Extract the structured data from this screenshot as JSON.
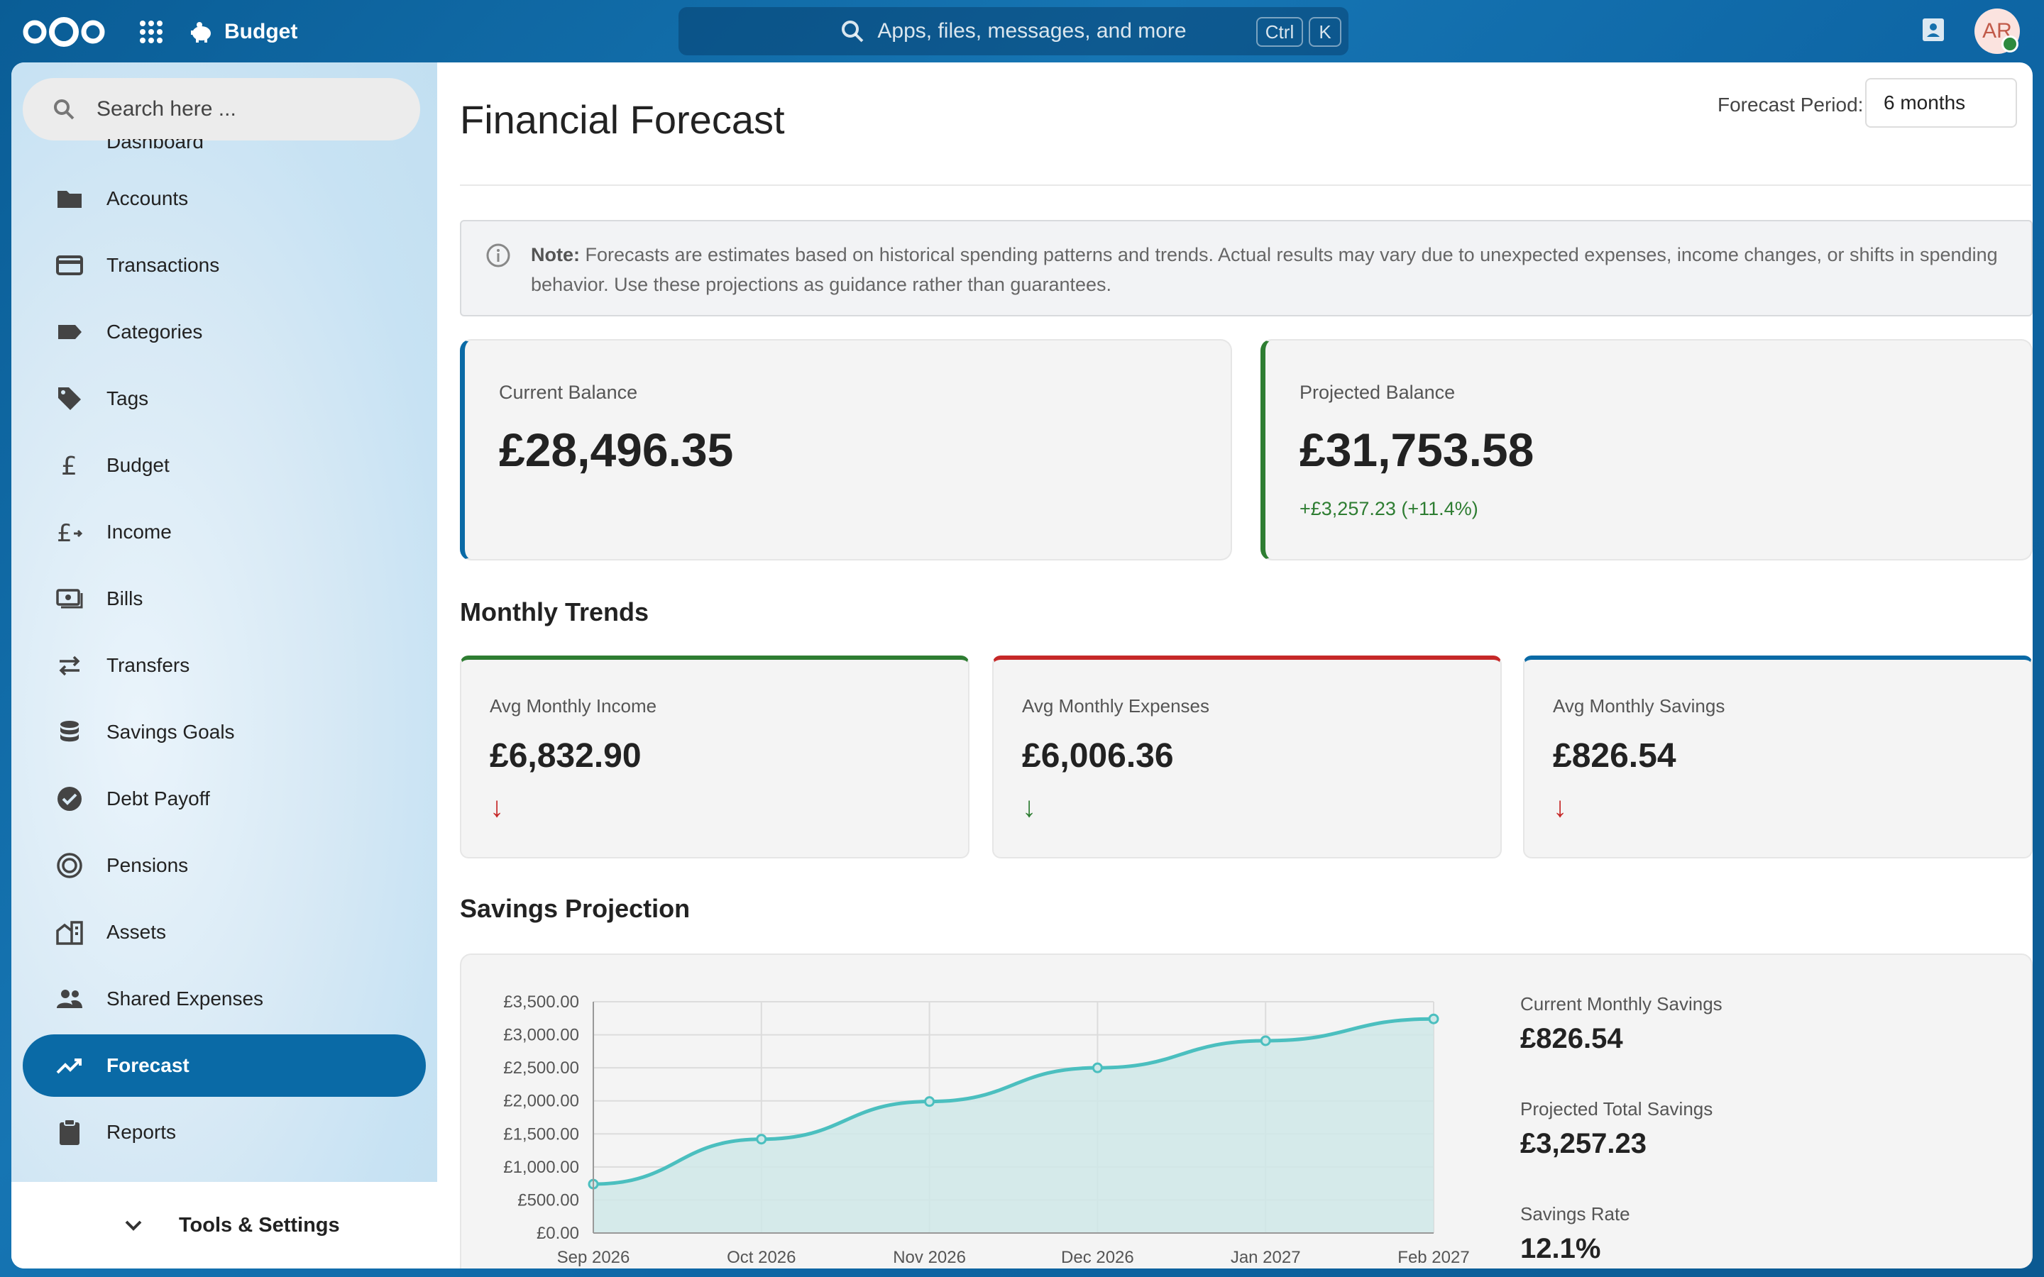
{
  "header": {
    "app_name": "Budget",
    "search_placeholder": "Apps, files, messages, and more",
    "kbd_ctrl": "Ctrl",
    "kbd_k": "K",
    "avatar_initials": "AR"
  },
  "sidebar": {
    "search_placeholder": "Search here ...",
    "clipped_item": "Dashboard",
    "items": [
      {
        "label": "Accounts",
        "icon": "folder-icon"
      },
      {
        "label": "Transactions",
        "icon": "credit-card-icon"
      },
      {
        "label": "Categories",
        "icon": "label-icon"
      },
      {
        "label": "Tags",
        "icon": "tag-icon"
      },
      {
        "label": "Budget",
        "icon": "pound-icon"
      },
      {
        "label": "Income",
        "icon": "pound-arrow-icon"
      },
      {
        "label": "Bills",
        "icon": "cash-icon"
      },
      {
        "label": "Transfers",
        "icon": "swap-icon"
      },
      {
        "label": "Savings Goals",
        "icon": "database-icon"
      },
      {
        "label": "Debt Payoff",
        "icon": "check-circle-icon"
      },
      {
        "label": "Pensions",
        "icon": "target-icon"
      },
      {
        "label": "Assets",
        "icon": "buildings-icon"
      },
      {
        "label": "Shared Expenses",
        "icon": "people-icon"
      },
      {
        "label": "Forecast",
        "icon": "trend-icon",
        "active": true
      },
      {
        "label": "Reports",
        "icon": "clipboard-icon"
      }
    ],
    "tools_label": "Tools & Settings"
  },
  "main": {
    "title": "Financial Forecast",
    "period_label": "Forecast Period:",
    "period_value": "6 months",
    "note_bold": "Note:",
    "note_text": " Forecasts are estimates based on historical spending patterns and trends. Actual results may vary due to unexpected expenses, income changes, or shifts in spending behavior. Use these projections as guidance rather than guarantees.",
    "current_balance": {
      "label": "Current Balance",
      "value": "£28,496.35"
    },
    "projected_balance": {
      "label": "Projected Balance",
      "value": "£31,753.58",
      "change": "+£3,257.23 (+11.4%)"
    },
    "trends_title": "Monthly Trends",
    "trends": [
      {
        "label": "Avg Monthly Income",
        "value": "£6,832.90",
        "arrow": "↓",
        "accent": "#2e7d32",
        "arrow_color": "#c62828"
      },
      {
        "label": "Avg Monthly Expenses",
        "value": "£6,006.36",
        "arrow": "↓",
        "accent": "#c62828",
        "arrow_color": "#2e7d32"
      },
      {
        "label": "Avg Monthly Savings",
        "value": "£826.54",
        "arrow": "↓",
        "accent": "#0a6aa6",
        "arrow_color": "#c62828"
      }
    ],
    "projection_title": "Savings Projection",
    "stats": [
      {
        "label": "Current Monthly Savings",
        "value": "£826.54"
      },
      {
        "label": "Projected Total Savings",
        "value": "£3,257.23"
      },
      {
        "label": "Savings Rate",
        "value": "12.1%"
      }
    ]
  },
  "chart_data": {
    "type": "area",
    "categories": [
      "Sep 2026",
      "Oct 2026",
      "Nov 2026",
      "Dec 2026",
      "Jan 2027",
      "Feb 2027"
    ],
    "values": [
      740,
      1420,
      1990,
      2500,
      2910,
      3240
    ],
    "ylim": [
      0,
      3500
    ],
    "yticks": [
      "£0.00",
      "£500.00",
      "£1,000.00",
      "£1,500.00",
      "£2,000.00",
      "£2,500.00",
      "£3,000.00",
      "£3,500.00"
    ],
    "ytick_values": [
      0,
      500,
      1000,
      1500,
      2000,
      2500,
      3000,
      3500
    ],
    "grid": true,
    "line_color": "#4bbfbf",
    "fill_color": "#cfe8e8"
  }
}
